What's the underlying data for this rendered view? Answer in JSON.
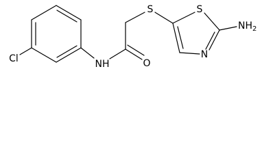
{
  "labels": {
    "chlorine": "Cl",
    "amide_nh": "NH",
    "oxygen": "O",
    "thioether_s": "S",
    "ring_s": "S",
    "ring_n": "N",
    "amine": "NH",
    "amine_subscript": "2"
  }
}
